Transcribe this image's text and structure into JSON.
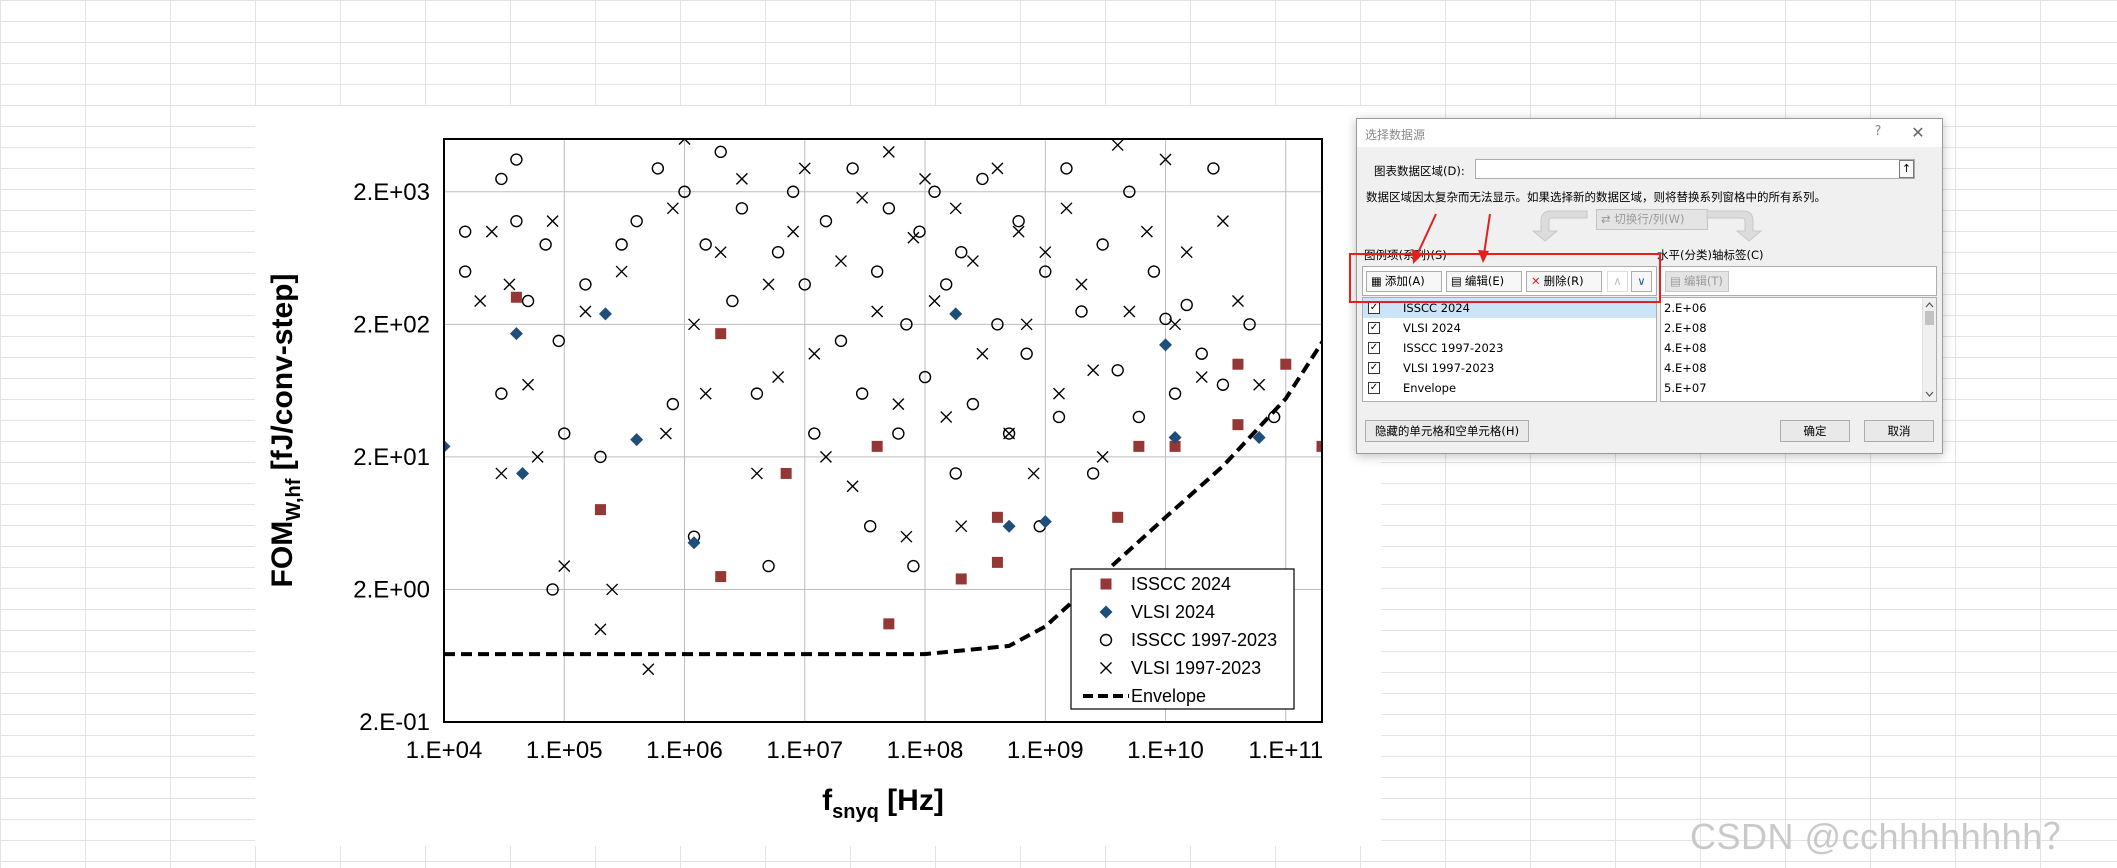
{
  "chart_data": {
    "type": "scatter",
    "xlabel_main": "f",
    "xlabel_sub": "snyq",
    "xlabel_unit": " [Hz]",
    "ylabel_main": "FOM",
    "ylabel_sub": "W,hf",
    "ylabel_unit": " [fJ/conv-step]",
    "x_scale": "log",
    "y_scale": "log",
    "xlim": [
      10000,
      200000000000
    ],
    "ylim": [
      0.2,
      5000
    ],
    "x_ticks": [
      {
        "value": 10000,
        "label": "1.E+04"
      },
      {
        "value": 100000,
        "label": "1.E+05"
      },
      {
        "value": 1000000,
        "label": "1.E+06"
      },
      {
        "value": 10000000,
        "label": "1.E+07"
      },
      {
        "value": 100000000,
        "label": "1.E+08"
      },
      {
        "value": 1000000000,
        "label": "1.E+09"
      },
      {
        "value": 10000000000,
        "label": "1.E+10"
      },
      {
        "value": 100000000000,
        "label": "1.E+11"
      }
    ],
    "y_ticks": [
      {
        "value": 0.2,
        "label": "2.E-01"
      },
      {
        "value": 2,
        "label": "2.E+00"
      },
      {
        "value": 20,
        "label": "2.E+01"
      },
      {
        "value": 200,
        "label": "2.E+02"
      },
      {
        "value": 2000,
        "label": "2.E+03"
      }
    ],
    "grid": true,
    "legend_position": "bottom-right",
    "series": [
      {
        "name": "ISSCC 2024",
        "marker": "square",
        "color": "#953735",
        "points": [
          [
            40000,
            320
          ],
          [
            200000,
            8
          ],
          [
            2000000,
            2.5
          ],
          [
            2000000,
            170
          ],
          [
            7000000,
            15
          ],
          [
            40000000,
            24
          ],
          [
            50000000,
            1.1
          ],
          [
            200000000,
            2.4
          ],
          [
            400000000,
            3.2
          ],
          [
            400000000,
            7
          ],
          [
            4000000000,
            7
          ],
          [
            6000000000,
            24
          ],
          [
            12000000000,
            24
          ],
          [
            40000000000,
            35
          ],
          [
            40000000000,
            100
          ],
          [
            100000000000,
            100
          ],
          [
            200000000000,
            24
          ]
        ]
      },
      {
        "name": "VLSI 2024",
        "marker": "diamond",
        "color": "#1f4e79",
        "points": [
          [
            10000,
            24
          ],
          [
            40000,
            170
          ],
          [
            45000,
            15
          ],
          [
            220000,
            240
          ],
          [
            400000,
            27
          ],
          [
            1200000,
            4.5
          ],
          [
            180000000,
            240
          ],
          [
            500000000,
            6
          ],
          [
            1000000000,
            6.5
          ],
          [
            10000000000,
            140
          ],
          [
            12000000000,
            28
          ],
          [
            60000000000,
            28
          ]
        ]
      },
      {
        "name": "ISSCC 1997-2023",
        "marker": "circle",
        "color": "#000000",
        "points": [
          [
            15000,
            1000
          ],
          [
            15000,
            500
          ],
          [
            30000,
            2500
          ],
          [
            30000,
            60
          ],
          [
            40000,
            1200
          ],
          [
            40000,
            3500
          ],
          [
            50000,
            300
          ],
          [
            70000,
            800
          ],
          [
            80000,
            2
          ],
          [
            90000,
            150
          ],
          [
            100000,
            30
          ],
          [
            150000,
            400
          ],
          [
            200000,
            20
          ],
          [
            300000,
            800
          ],
          [
            400000,
            1200
          ],
          [
            600000,
            3000
          ],
          [
            800000,
            50
          ],
          [
            1000000,
            2000
          ],
          [
            1200000,
            5
          ],
          [
            1500000,
            800
          ],
          [
            2000000,
            4000
          ],
          [
            2500000,
            300
          ],
          [
            3000000,
            1500
          ],
          [
            4000000,
            60
          ],
          [
            5000000,
            3
          ],
          [
            6000000,
            700
          ],
          [
            8000000,
            2000
          ],
          [
            10000000,
            400
          ],
          [
            12000000,
            30
          ],
          [
            15000000,
            1200
          ],
          [
            20000000,
            150
          ],
          [
            25000000,
            3000
          ],
          [
            30000000,
            60
          ],
          [
            35000000,
            6
          ],
          [
            40000000,
            500
          ],
          [
            50000000,
            1500
          ],
          [
            60000000,
            30
          ],
          [
            70000000,
            200
          ],
          [
            80000000,
            3
          ],
          [
            90000000,
            1000
          ],
          [
            100000000,
            80
          ],
          [
            120000000,
            2000
          ],
          [
            150000000,
            400
          ],
          [
            180000000,
            15
          ],
          [
            200000000,
            700
          ],
          [
            250000000,
            50
          ],
          [
            300000000,
            2500
          ],
          [
            400000000,
            200
          ],
          [
            500000000,
            30
          ],
          [
            600000000,
            1200
          ],
          [
            700000000,
            120
          ],
          [
            900000000,
            6
          ],
          [
            1000000000,
            500
          ],
          [
            1300000000,
            40
          ],
          [
            1500000000,
            3000
          ],
          [
            2000000000,
            250
          ],
          [
            2500000000,
            15
          ],
          [
            3000000000,
            800
          ],
          [
            4000000000,
            90
          ],
          [
            5000000000,
            2000
          ],
          [
            6000000000,
            40
          ],
          [
            8000000000,
            500
          ],
          [
            10000000000,
            220
          ],
          [
            12000000000,
            60
          ],
          [
            15000000000,
            280
          ],
          [
            20000000000,
            120
          ],
          [
            25000000000,
            3000
          ],
          [
            30000000000,
            70
          ],
          [
            50000000000,
            200
          ],
          [
            80000000000,
            40
          ]
        ]
      },
      {
        "name": "VLSI 1997-2023",
        "marker": "x",
        "color": "#000000",
        "points": [
          [
            20000,
            300
          ],
          [
            25000,
            1000
          ],
          [
            30000,
            15
          ],
          [
            35000,
            400
          ],
          [
            50000,
            70
          ],
          [
            60000,
            20
          ],
          [
            80000,
            1200
          ],
          [
            100000,
            3
          ],
          [
            150000,
            250
          ],
          [
            200000,
            1
          ],
          [
            250000,
            2
          ],
          [
            300000,
            500
          ],
          [
            500000,
            0.5
          ],
          [
            700000,
            30
          ],
          [
            800000,
            1500
          ],
          [
            1000000,
            5000
          ],
          [
            1200000,
            200
          ],
          [
            1500000,
            60
          ],
          [
            2000000,
            700
          ],
          [
            3000000,
            2500
          ],
          [
            4000000,
            15
          ],
          [
            5000000,
            400
          ],
          [
            6000000,
            80
          ],
          [
            8000000,
            1000
          ],
          [
            10000000,
            3000
          ],
          [
            12000000,
            120
          ],
          [
            15000000,
            20
          ],
          [
            20000000,
            600
          ],
          [
            25000000,
            12
          ],
          [
            30000000,
            1800
          ],
          [
            40000000,
            250
          ],
          [
            50000000,
            4000
          ],
          [
            60000000,
            50
          ],
          [
            70000000,
            5
          ],
          [
            80000000,
            900
          ],
          [
            100000000,
            2500
          ],
          [
            120000000,
            300
          ],
          [
            150000000,
            40
          ],
          [
            180000000,
            1500
          ],
          [
            200000000,
            6
          ],
          [
            250000000,
            600
          ],
          [
            300000000,
            120
          ],
          [
            400000000,
            3000
          ],
          [
            500000000,
            30
          ],
          [
            600000000,
            1000
          ],
          [
            700000000,
            200
          ],
          [
            800000000,
            15
          ],
          [
            1000000000,
            700
          ],
          [
            1300000000,
            60
          ],
          [
            1500000000,
            1500
          ],
          [
            2000000000,
            400
          ],
          [
            2500000000,
            90
          ],
          [
            3000000000,
            20
          ],
          [
            4000000000,
            4500
          ],
          [
            5000000000,
            250
          ],
          [
            7000000000,
            1000
          ],
          [
            10000000000,
            3500
          ],
          [
            12000000000,
            200
          ],
          [
            15000000000,
            700
          ],
          [
            20000000000,
            80
          ],
          [
            30000000000,
            1200
          ],
          [
            40000000000,
            300
          ],
          [
            60000000000,
            70
          ]
        ]
      },
      {
        "name": "Envelope",
        "marker": "dashed-line",
        "color": "#000000",
        "points": [
          [
            10000,
            0.65
          ],
          [
            100000000,
            0.65
          ],
          [
            500000000,
            0.75
          ],
          [
            1000000000,
            1.05
          ],
          [
            3000000000,
            2.6
          ],
          [
            10000000000,
            7
          ],
          [
            30000000000,
            17
          ],
          [
            100000000000,
            55
          ],
          [
            250000000000,
            200
          ]
        ]
      }
    ]
  },
  "dialog": {
    "title": "选择数据源",
    "help_label": "?",
    "close_label": "✕",
    "range_label": "图表数据区域(D):",
    "range_value": "",
    "collapse_label": "↑",
    "info_text": "数据区域因太复杂而无法显示。如果选择新的数据区域，则将替换系列窗格中的所有系列。",
    "switch_label": "切换行/列(W)",
    "series_label": "图例项(系列)(S)",
    "category_label": "水平(分类)轴标签(C)",
    "add_label": "添加(A)",
    "edit_label": "编辑(E)",
    "delete_label": "删除(R)",
    "up_label": "∧",
    "down_label": "∨",
    "category_edit_label": "编辑(T)",
    "series_items": [
      "ISSCC 2024",
      "VLSI 2024",
      "ISSCC 1997-2023",
      "VLSI 1997-2023",
      "Envelope"
    ],
    "category_items": [
      "2.E+06",
      "2.E+08",
      "4.E+08",
      "4.E+08",
      "5.E+07"
    ],
    "hidden_cells_label": "隐藏的单元格和空单元格(H)",
    "ok_label": "确定",
    "cancel_label": "取消"
  },
  "watermark": "CSDN @cchhhhhhhh？",
  "annotation_color": "#e51e1e"
}
